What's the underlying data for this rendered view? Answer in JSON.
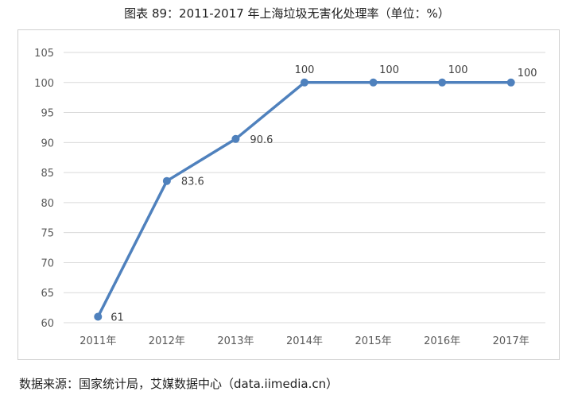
{
  "title": "图表 89：2011-2017 年上海垃圾无害化处理率（单位：%）",
  "source": "数据来源：国家统计局，艾媒数据中心（data.iimedia.cn）",
  "colors": {
    "line": "#4f81bd",
    "grid": "#d9d9d9"
  },
  "chart_data": {
    "type": "line",
    "title": "图表 89：2011-2017 年上海垃圾无害化处理率（单位：%）",
    "xlabel": "",
    "ylabel": "",
    "categories": [
      "2011年",
      "2012年",
      "2013年",
      "2014年",
      "2015年",
      "2016年",
      "2017年"
    ],
    "series": [
      {
        "values": [
          61,
          83.6,
          90.6,
          100,
          100,
          100,
          100
        ]
      }
    ],
    "data_labels": [
      "61",
      "83.6",
      "90.6",
      "100",
      "100",
      "100",
      "100"
    ],
    "ylim": [
      60,
      105
    ],
    "yticks": [
      "60",
      "65",
      "70",
      "75",
      "80",
      "85",
      "90",
      "95",
      "100",
      "105"
    ],
    "grid": true,
    "legend": "none"
  }
}
